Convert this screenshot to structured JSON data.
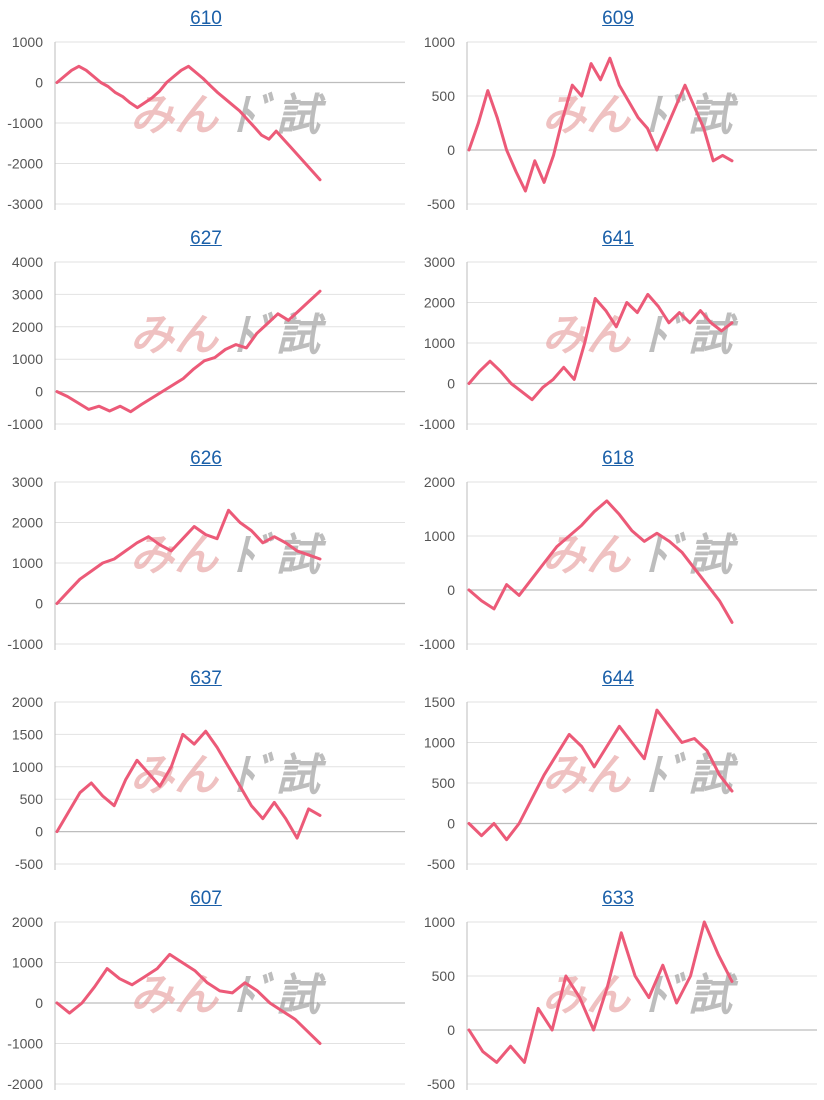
{
  "colors": {
    "line": "#ec5a78",
    "title": "#1a5fa8",
    "grid": "#e2e2e2",
    "axis": "#bdbdbd",
    "tick": "#555555"
  },
  "watermark": {
    "part_a": "みん",
    "part_b": "ﾄﾞ試"
  },
  "chart_data": [
    {
      "type": "line",
      "title": "610",
      "ylim": [
        -3000,
        1000
      ],
      "yticks": [
        1000,
        0,
        -1000,
        -2000,
        -3000
      ],
      "values": [
        0,
        150,
        300,
        400,
        300,
        150,
        0,
        -100,
        -250,
        -350,
        -500,
        -620,
        -500,
        -380,
        -220,
        0,
        150,
        300,
        400,
        250,
        100,
        -80,
        -250,
        -400,
        -550,
        -700,
        -900,
        -1100,
        -1300,
        -1400,
        -1200,
        -1400,
        -1600,
        -1800,
        -2000,
        -2200,
        -2400
      ]
    },
    {
      "type": "line",
      "title": "609",
      "ylim": [
        -500,
        1000
      ],
      "yticks": [
        1000,
        500,
        0,
        -500
      ],
      "values": [
        0,
        250,
        550,
        300,
        0,
        -200,
        -380,
        -100,
        -300,
        -50,
        300,
        600,
        500,
        800,
        650,
        850,
        600,
        450,
        300,
        200,
        0,
        200,
        400,
        600,
        400,
        200,
        -100,
        -50,
        -100
      ]
    },
    {
      "type": "line",
      "title": "627",
      "ylim": [
        -1000,
        4000
      ],
      "yticks": [
        4000,
        3000,
        2000,
        1000,
        0,
        -1000
      ],
      "values": [
        0,
        -150,
        -350,
        -550,
        -450,
        -600,
        -450,
        -620,
        -400,
        -200,
        0,
        200,
        400,
        700,
        950,
        1050,
        1300,
        1450,
        1350,
        1800,
        2100,
        2400,
        2200,
        2500,
        2800,
        3100
      ]
    },
    {
      "type": "line",
      "title": "641",
      "ylim": [
        -1000,
        3000
      ],
      "yticks": [
        3000,
        2000,
        1000,
        0,
        -1000
      ],
      "values": [
        0,
        300,
        550,
        300,
        0,
        -200,
        -400,
        -100,
        100,
        400,
        100,
        1000,
        2100,
        1800,
        1400,
        2000,
        1750,
        2200,
        1900,
        1500,
        1750,
        1500,
        1800,
        1500,
        1300,
        1500
      ]
    },
    {
      "type": "line",
      "title": "626",
      "ylim": [
        -1000,
        3000
      ],
      "yticks": [
        3000,
        2000,
        1000,
        0,
        -1000
      ],
      "values": [
        0,
        300,
        600,
        800,
        1000,
        1100,
        1300,
        1500,
        1650,
        1450,
        1300,
        1600,
        1900,
        1700,
        1600,
        2300,
        2000,
        1800,
        1500,
        1650,
        1500,
        1300,
        1200,
        1100
      ]
    },
    {
      "type": "line",
      "title": "618",
      "ylim": [
        -1000,
        2000
      ],
      "yticks": [
        2000,
        1000,
        0,
        -1000
      ],
      "values": [
        0,
        -200,
        -350,
        100,
        -100,
        200,
        500,
        800,
        1000,
        1200,
        1450,
        1650,
        1400,
        1100,
        900,
        1050,
        900,
        700,
        400,
        100,
        -200,
        -600
      ]
    },
    {
      "type": "line",
      "title": "637",
      "ylim": [
        -500,
        2000
      ],
      "yticks": [
        2000,
        1500,
        1000,
        500,
        0,
        -500
      ],
      "values": [
        0,
        300,
        600,
        750,
        550,
        400,
        800,
        1100,
        900,
        700,
        1000,
        1500,
        1350,
        1550,
        1300,
        1000,
        700,
        400,
        200,
        450,
        200,
        -100,
        350,
        250
      ]
    },
    {
      "type": "line",
      "title": "644",
      "ylim": [
        -500,
        1500
      ],
      "yticks": [
        1500,
        1000,
        500,
        0,
        -500
      ],
      "values": [
        0,
        -150,
        0,
        -200,
        0,
        300,
        600,
        850,
        1100,
        950,
        700,
        950,
        1200,
        1000,
        800,
        1400,
        1200,
        1000,
        1050,
        900,
        600,
        400
      ]
    },
    {
      "type": "line",
      "title": "607",
      "ylim": [
        -2000,
        2000
      ],
      "yticks": [
        2000,
        1000,
        0,
        -1000,
        -2000
      ],
      "values": [
        0,
        -250,
        0,
        400,
        850,
        600,
        450,
        650,
        850,
        1200,
        1000,
        800,
        500,
        300,
        250,
        500,
        300,
        0,
        -200,
        -400,
        -700,
        -1000
      ]
    },
    {
      "type": "line",
      "title": "633",
      "ylim": [
        -500,
        1000
      ],
      "yticks": [
        1000,
        500,
        0,
        -500
      ],
      "values": [
        0,
        -200,
        -300,
        -150,
        -300,
        200,
        0,
        500,
        300,
        0,
        400,
        900,
        500,
        300,
        600,
        250,
        500,
        1000,
        700,
        450
      ]
    }
  ]
}
